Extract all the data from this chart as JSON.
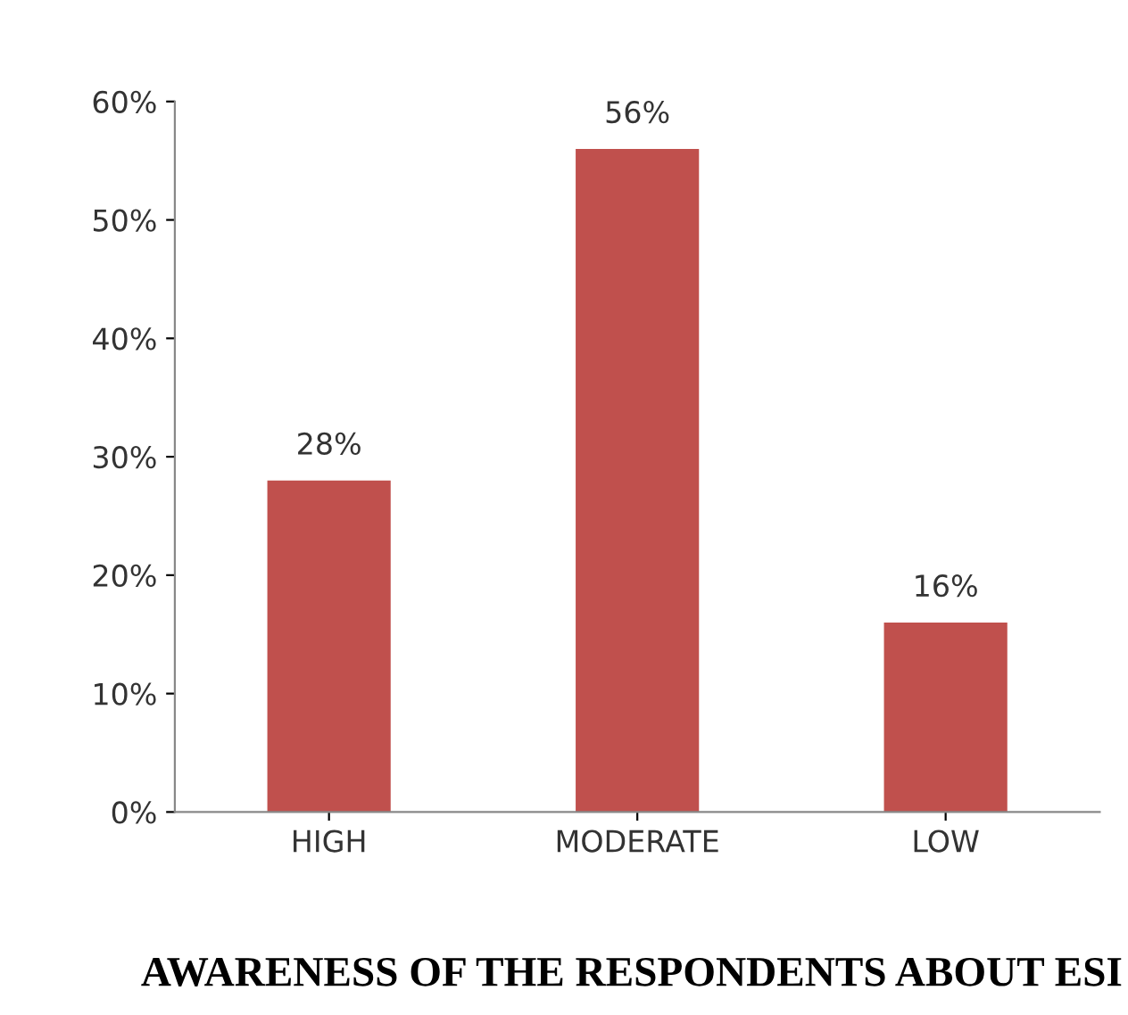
{
  "chart_data": {
    "type": "bar",
    "title": "AWARENESS OF THE RESPONDENTS ABOUT ESI",
    "categories": [
      "HIGH",
      "MODERATE",
      "LOW"
    ],
    "values": [
      28,
      56,
      16
    ],
    "color": "#c0504d",
    "value_labels": [
      "28%",
      "56%",
      "16%"
    ],
    "ylim": [
      0,
      60
    ],
    "yticks": [
      {
        "value": 0,
        "label": "0%"
      },
      {
        "value": 10,
        "label": "10%"
      },
      {
        "value": 20,
        "label": "20%"
      },
      {
        "value": 30,
        "label": "30%"
      },
      {
        "value": 40,
        "label": "40%"
      },
      {
        "value": 50,
        "label": "50%"
      },
      {
        "value": 60,
        "label": "60%"
      }
    ],
    "grid": false,
    "legend": false
  }
}
